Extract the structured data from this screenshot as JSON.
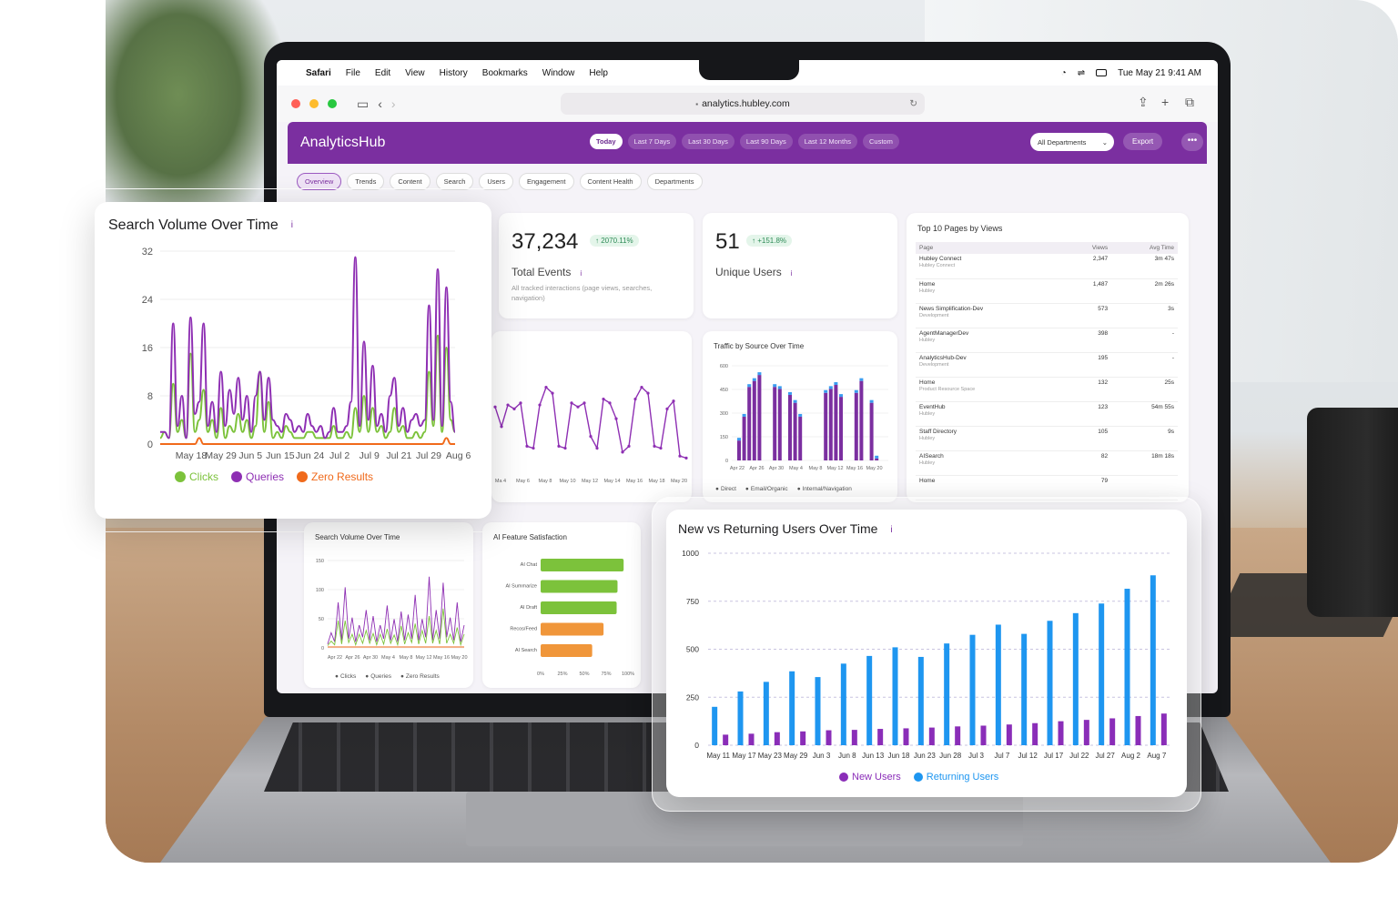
{
  "menubar": {
    "apple": "",
    "app": "Safari",
    "menus": [
      "File",
      "Edit",
      "View",
      "History",
      "Bookmarks",
      "Window",
      "Help"
    ],
    "datetime": "Tue May 21  9:41 AM"
  },
  "browser": {
    "url": "analytics.hubley.com"
  },
  "app": {
    "brand": "AnalyticsHub",
    "ranges": [
      "Today",
      "Last 7 Days",
      "Last 30 Days",
      "Last 90 Days",
      "Last 12 Months",
      "Custom"
    ],
    "active_range": "Today",
    "department": "All Departments",
    "export_label": "Export",
    "more_label": "•••",
    "tabs": [
      "Overview",
      "Trends",
      "Content",
      "Search",
      "Users",
      "Engagement",
      "Content Health",
      "Departments"
    ],
    "active_tab": "Overview"
  },
  "kpis": {
    "events": {
      "value": "37,234",
      "change": "↑ 2070.11%",
      "label": "Total Events",
      "sub": "All tracked interactions (page views, searches, navigation)"
    },
    "users": {
      "value": "51",
      "change": "↑ +151.8%",
      "label": "Unique Users"
    }
  },
  "top_pages": {
    "title": "Top 10 Pages by Views",
    "headers": [
      "Page",
      "Views",
      "Avg Time"
    ],
    "rows": [
      {
        "page": "Hubley Connect",
        "sub": "Hubley Connect",
        "views": "2,347",
        "time": "3m 47s"
      },
      {
        "page": "Home",
        "sub": "Hubley",
        "views": "1,487",
        "time": "2m 26s"
      },
      {
        "page": "News Simplification-Dev",
        "sub": "Development",
        "views": "573",
        "time": "3s"
      },
      {
        "page": "AgentManagerDev",
        "sub": "Hubley",
        "views": "398",
        "time": "-"
      },
      {
        "page": "AnalyticsHub-Dev",
        "sub": "Development",
        "views": "195",
        "time": "-"
      },
      {
        "page": "Home",
        "sub": "Product Resource Space",
        "views": "132",
        "time": "25s"
      },
      {
        "page": "EventHub",
        "sub": "Hubley",
        "views": "123",
        "time": "54m 55s"
      },
      {
        "page": "Staff Directory",
        "sub": "Hubley",
        "views": "105",
        "time": "9s"
      },
      {
        "page": "AISearch",
        "sub": "Hubley",
        "views": "82",
        "time": "18m 18s"
      },
      {
        "page": "Home",
        "sub": "",
        "views": "79",
        "time": ""
      }
    ]
  },
  "traffic": {
    "title": "Traffic by Source Over Time",
    "yticks": [
      "600",
      "450",
      "300",
      "150",
      "0"
    ],
    "xticks": [
      "Apr 22",
      "Apr 26",
      "Apr 30",
      "May 4",
      "May 8",
      "May 12",
      "May 16",
      "May 20"
    ],
    "legend": [
      "Direct",
      "Email/Organic",
      "Internal/Navigation"
    ]
  },
  "background_line": {
    "xticks": [
      "Ma 4",
      "May 6",
      "May 8",
      "May 10",
      "May 12",
      "May 14",
      "May 16",
      "May 18",
      "May 20"
    ]
  },
  "small_search": {
    "title": "Search Volume Over Time",
    "yticks": [
      "150",
      "100",
      "50",
      "0"
    ],
    "xticks": [
      "Apr 22",
      "Apr 26",
      "Apr 30",
      "May 4",
      "May 8",
      "May 12",
      "May 16",
      "May 20"
    ],
    "legend": [
      "Clicks",
      "Queries",
      "Zero Results"
    ]
  },
  "ai_satisfaction": {
    "title": "AI Feature Satisfaction",
    "xticks": [
      "0%",
      "25%",
      "50%",
      "75%",
      "100%"
    ]
  },
  "colors": {
    "brand": "#7b2fa0",
    "clicks": "#7cc23b",
    "queries": "#8e2fb3",
    "zero": "#f06a1b",
    "new_users": "#8a2db8",
    "returning_users": "#1e96f0"
  },
  "chart_data": [
    {
      "type": "line",
      "title": "Search Volume Over Time",
      "x_ticks": [
        "May 18",
        "May 29",
        "Jun 5",
        "Jun 15",
        "Jun 24",
        "Jul 2",
        "Jul 9",
        "Jul 21",
        "Jul 29",
        "Aug 6"
      ],
      "ylim": [
        0,
        32
      ],
      "y_ticks": [
        "32",
        "24",
        "16",
        "8",
        "0"
      ],
      "series": [
        {
          "name": "Clicks",
          "color": "#7cc23b",
          "values": [
            1,
            2,
            1,
            10,
            2,
            4,
            1,
            15,
            2,
            4,
            9,
            2,
            4,
            1,
            6,
            1,
            3,
            2,
            5,
            2,
            4,
            1,
            3,
            12,
            2,
            7,
            1,
            2,
            1,
            3,
            2,
            1,
            1,
            1,
            2,
            2,
            1,
            1,
            1,
            1,
            3,
            1,
            1,
            2,
            1,
            6,
            2,
            8,
            2,
            6,
            2,
            3,
            1,
            2,
            6,
            2,
            3,
            1,
            1,
            2,
            1,
            2,
            12,
            3,
            18,
            2,
            16,
            4,
            2
          ]
        },
        {
          "name": "Queries",
          "color": "#8e2fb3",
          "values": [
            2,
            2,
            1,
            20,
            3,
            8,
            1,
            21,
            5,
            7,
            20,
            3,
            7,
            2,
            12,
            3,
            9,
            5,
            11,
            4,
            8,
            2,
            8,
            12,
            4,
            11,
            4,
            3,
            2,
            5,
            4,
            2,
            3,
            2,
            5,
            3,
            2,
            3,
            1,
            2,
            6,
            2,
            2,
            3,
            7,
            31,
            3,
            17,
            4,
            13,
            3,
            5,
            2,
            8,
            11,
            3,
            6,
            2,
            4,
            5,
            3,
            4,
            23,
            4,
            29,
            3,
            26,
            7,
            2
          ]
        },
        {
          "name": "Zero Results",
          "color": "#f06a1b",
          "values": [
            0,
            0,
            0,
            0,
            0,
            0,
            0,
            0,
            0,
            1,
            0,
            0,
            0,
            0,
            0,
            0,
            0,
            0,
            0,
            0,
            0,
            0,
            0,
            0,
            0,
            0,
            0,
            0,
            0,
            0,
            0,
            0,
            0,
            0,
            0,
            0,
            0,
            0,
            0,
            0,
            0,
            0,
            0,
            0,
            0,
            0,
            0,
            0,
            0,
            0,
            0,
            0,
            0,
            0,
            0,
            0,
            0,
            0,
            0,
            0,
            0,
            0,
            0,
            0,
            0,
            0,
            1,
            0,
            0
          ]
        }
      ],
      "legend": [
        "Clicks",
        "Queries",
        "Zero Results"
      ]
    },
    {
      "type": "bar",
      "title": "New vs Returning Users Over Time",
      "categories": [
        "May 11",
        "May 17",
        "May 23",
        "May 29",
        "Jun 3",
        "Jun 8",
        "Jun 13",
        "Jun 18",
        "Jun 23",
        "Jun 28",
        "Jul 3",
        "Jul 7",
        "Jul 12",
        "Jul 17",
        "Jul 22",
        "Jul 27",
        "Aug 2",
        "Aug 7"
      ],
      "ylim": [
        0,
        1000
      ],
      "y_ticks": [
        "1000",
        "750",
        "500",
        "250",
        "0"
      ],
      "series": [
        {
          "name": "New Users",
          "color": "#8a2db8",
          "values": [
            55,
            60,
            68,
            72,
            78,
            80,
            85,
            88,
            92,
            98,
            102,
            108,
            115,
            125,
            132,
            140,
            152,
            165
          ]
        },
        {
          "name": "Returning Users",
          "color": "#1e96f0",
          "values": [
            200,
            280,
            330,
            385,
            355,
            425,
            465,
            510,
            460,
            530,
            575,
            628,
            580,
            648,
            688,
            738,
            815,
            885
          ]
        }
      ],
      "legend": [
        "New Users",
        "Returning Users"
      ]
    },
    {
      "type": "bar",
      "title": "AI Feature Satisfaction",
      "orientation": "horizontal",
      "categories": [
        "AI Chat",
        "AI Summarize",
        "AI Draft",
        "Recos/Feed",
        "AI Search"
      ],
      "values": [
        95,
        88,
        87,
        72,
        59
      ],
      "xlim": [
        0,
        100
      ],
      "colors": [
        "#7cc23b",
        "#7cc23b",
        "#7cc23b",
        "#f0963a",
        "#f0963a"
      ]
    }
  ]
}
